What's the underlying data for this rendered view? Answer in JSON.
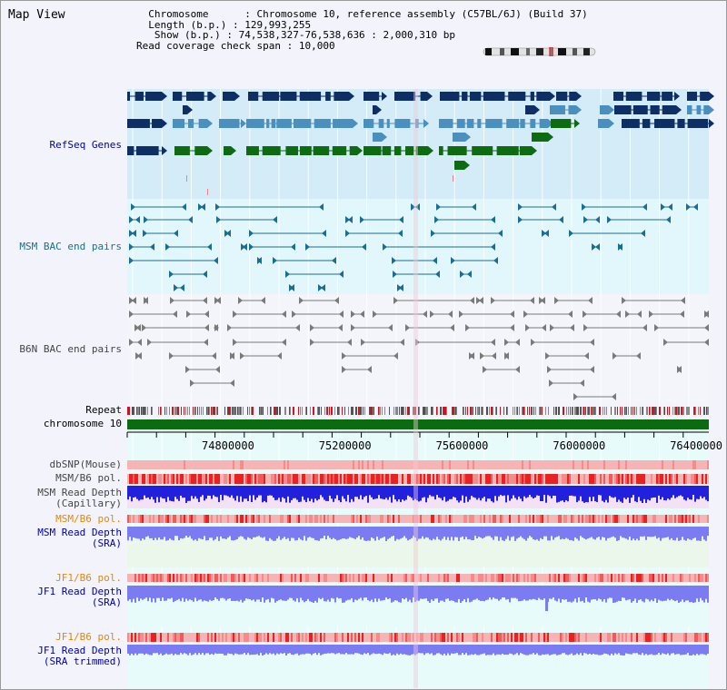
{
  "title": "Map View",
  "info": {
    "chromosome_key": "Chromosome",
    "chromosome_val": "Chromosome 10, reference assembly (C57BL/6J) (Build 37)",
    "length_key": "Length (b.p.)",
    "length_val": "129,993,255",
    "show_key": "Show (b.p.)",
    "show_val": "74,538,327-76,538,636 : 2,000,310 bp",
    "span_key": "Read coverage check span",
    "span_val": "10,000"
  },
  "tracks": {
    "refseq": "RefSeq Genes",
    "msm_bac": "MSM BAC end pairs",
    "b6n_bac": "B6N BAC end pairs",
    "repeat": "Repeat",
    "chromosome": "chromosome 10",
    "dbsnp": "dbSNP(Mouse)",
    "msm_b6_pol_1": "MSM/B6 pol.",
    "msm_depth_cap_1": "MSM Read Depth",
    "msm_depth_cap_2": "(Capillary)",
    "msm_b6_pol_2": "MSM/B6 pol.",
    "msm_depth_sra_1": "MSM Read Depth",
    "msm_depth_sra_2": "(SRA)",
    "jf1_b6_pol_1": "JF1/B6 pol.",
    "jf1_depth_sra_1": "JF1 Read Depth",
    "jf1_depth_sra_2": "(SRA)",
    "jf1_b6_pol_2": "JF1/B6 pol.",
    "jf1_depth_tr_1": "JF1 Read Depth",
    "jf1_depth_tr_2": "(SRA trimmed)"
  },
  "axis": {
    "ticks": [
      "74800000",
      "75200000",
      "75600000",
      "76000000",
      "76400000"
    ]
  },
  "colors": {
    "gene_navy": "#0d2f66",
    "gene_blue": "#4a8fbe",
    "gene_green": "#0e6b12",
    "bac_msm": "#1a6e93",
    "bac_b6n": "#7a7a7a",
    "label_blue": "#0000aa",
    "label_teal": "#1a6f8a",
    "label_orange": "#e08a00",
    "label_gray": "#444444",
    "depth_blue": "#2020dd",
    "depth_light": "#7c7cf2"
  }
}
